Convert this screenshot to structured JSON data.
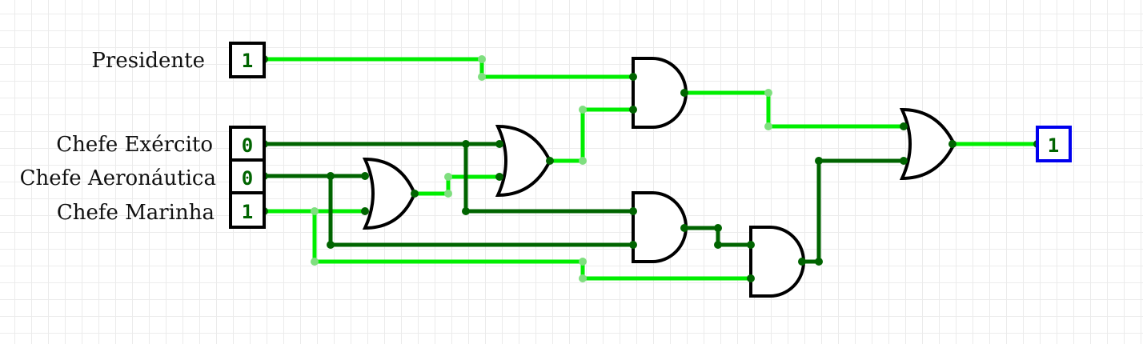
{
  "colors": {
    "high": "#00ee00",
    "low": "#006400",
    "high_dot": "#7fdf7f",
    "output_border": "#0000ee",
    "grid": "#ebebeb"
  },
  "inputs": [
    {
      "name": "Presidente",
      "value": "1"
    },
    {
      "name": "Chefe Exército",
      "value": "0"
    },
    {
      "name": "Chefe Aeronáutica",
      "value": "0"
    },
    {
      "name": "Chefe Marinha",
      "value": "1"
    }
  ],
  "output": {
    "value": "1"
  },
  "gates": [
    {
      "id": "or1",
      "type": "OR"
    },
    {
      "id": "or2",
      "type": "OR"
    },
    {
      "id": "and1",
      "type": "AND"
    },
    {
      "id": "and2",
      "type": "AND"
    },
    {
      "id": "and3",
      "type": "AND"
    },
    {
      "id": "or3",
      "type": "OR"
    }
  ]
}
